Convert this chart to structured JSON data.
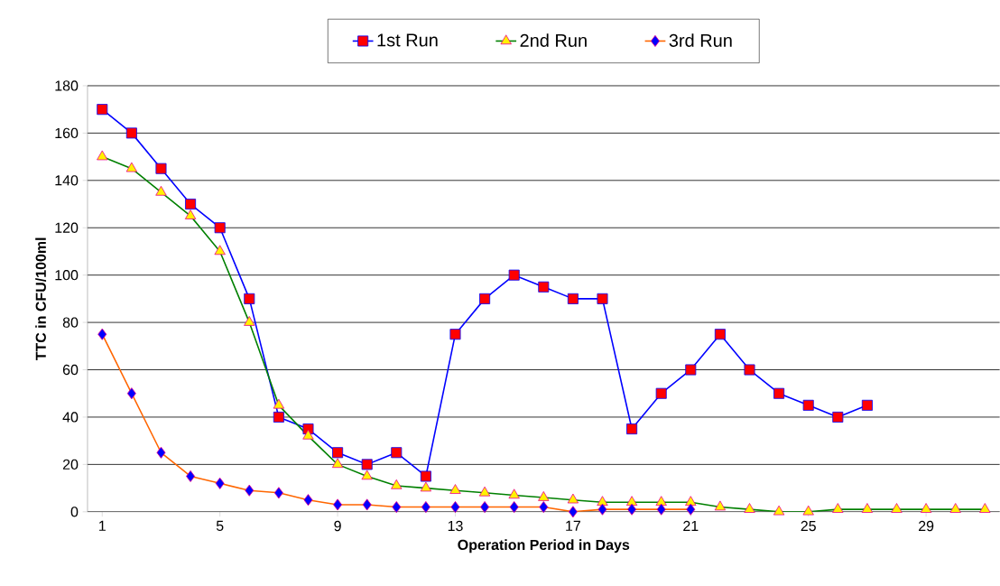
{
  "chart_data": {
    "type": "line",
    "xlabel": "Operation Period in Days",
    "ylabel": "TTC in  CFU/100ml",
    "xlim": [
      0.5,
      31.5
    ],
    "ylim": [
      0,
      180
    ],
    "xticks": [
      1,
      5,
      9,
      13,
      17,
      21,
      25,
      29
    ],
    "yticks": [
      0,
      20,
      40,
      60,
      80,
      100,
      120,
      140,
      160,
      180
    ],
    "grid": "y",
    "legend": "top",
    "line_style": "solid",
    "series": [
      {
        "name": "1st Run",
        "color": "#0000ff",
        "marker": "square",
        "x": [
          1,
          2,
          3,
          4,
          5,
          6,
          7,
          8,
          9,
          10,
          11,
          12,
          13,
          14,
          15,
          16,
          17,
          18,
          19,
          20,
          21,
          22,
          23,
          24,
          25,
          26,
          27
        ],
        "values": [
          170,
          160,
          145,
          130,
          120,
          90,
          40,
          35,
          25,
          20,
          25,
          15,
          75,
          90,
          100,
          95,
          90,
          90,
          35,
          50,
          60,
          75,
          60,
          50,
          45,
          40,
          45
        ]
      },
      {
        "name": "2nd Run",
        "color": "#008000",
        "marker": "triangle",
        "x": [
          1,
          2,
          3,
          4,
          5,
          6,
          7,
          8,
          9,
          10,
          11,
          12,
          13,
          14,
          15,
          16,
          17,
          18,
          19,
          20,
          21,
          22,
          23,
          24,
          25,
          26,
          27,
          28,
          29,
          30,
          31
        ],
        "values": [
          150,
          145,
          135,
          125,
          110,
          80,
          45,
          32,
          20,
          15,
          11,
          10,
          9,
          8,
          7,
          6,
          5,
          4,
          4,
          4,
          4,
          2,
          1,
          0,
          0,
          1,
          1,
          1,
          1,
          1,
          1
        ]
      },
      {
        "name": "3rd Run",
        "color": "#ff6600",
        "marker": "diamond",
        "x": [
          1,
          2,
          3,
          4,
          5,
          6,
          7,
          8,
          9,
          10,
          11,
          12,
          13,
          14,
          15,
          16,
          17,
          18,
          19,
          20,
          21
        ],
        "values": [
          75,
          50,
          25,
          15,
          12,
          9,
          8,
          5,
          3,
          3,
          2,
          2,
          2,
          2,
          2,
          2,
          0,
          1,
          1,
          1,
          1
        ]
      }
    ]
  }
}
